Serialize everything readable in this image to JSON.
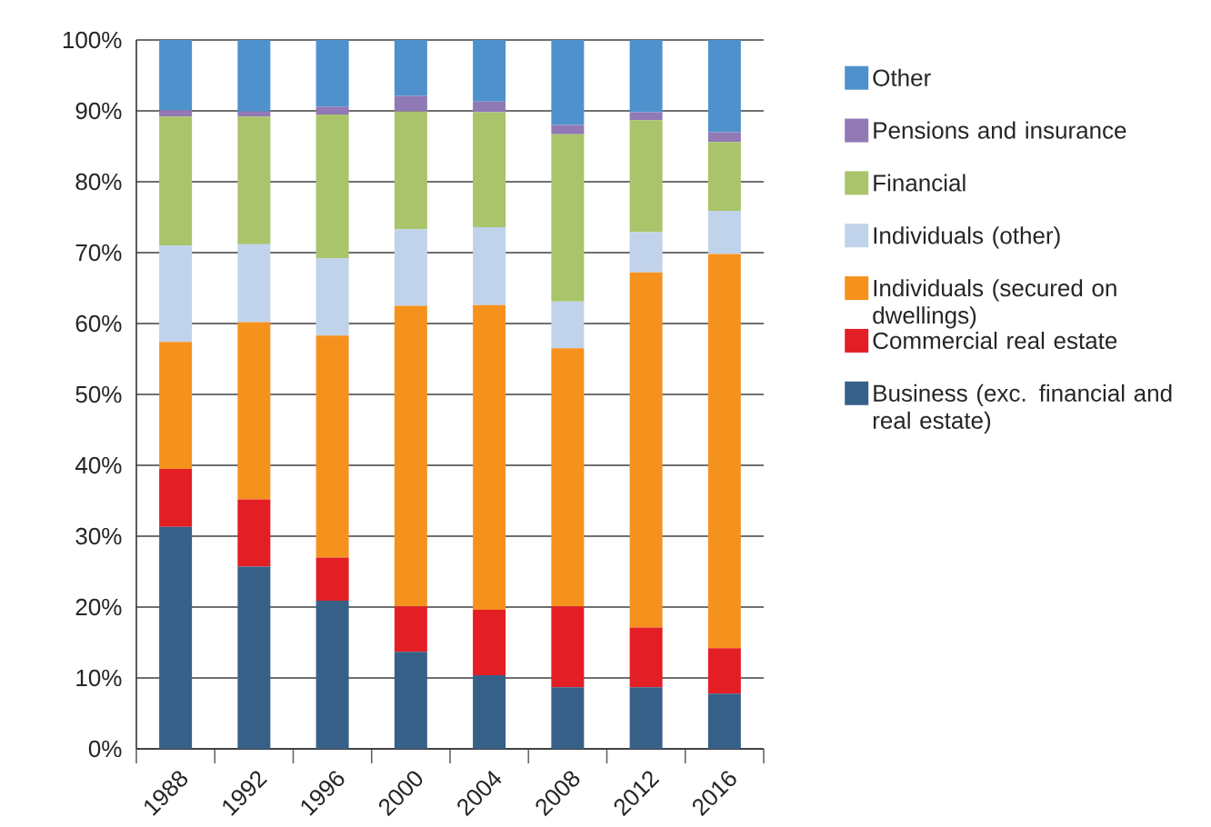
{
  "chart_data": {
    "type": "bar",
    "stacked": true,
    "categories": [
      "1988",
      "1992",
      "1996",
      "2000",
      "2004",
      "2008",
      "2012",
      "2016"
    ],
    "series": [
      {
        "name": "Business (exc. financial and real estate)",
        "color": "#376089",
        "values": [
          31.3,
          25.7,
          20.9,
          13.7,
          10.4,
          8.7,
          8.7,
          7.8
        ]
      },
      {
        "name": "Commercial real estate",
        "color": "#e31e24",
        "values": [
          8.2,
          9.5,
          6.1,
          6.4,
          9.2,
          11.4,
          8.4,
          6.4
        ]
      },
      {
        "name": "Individuals (secured on dwellings)",
        "color": "#f5921e",
        "values": [
          17.9,
          25.0,
          31.3,
          42.4,
          43.0,
          36.4,
          50.1,
          55.6
        ]
      },
      {
        "name": "Individuals (other)",
        "color": "#c0d3ea",
        "values": [
          13.6,
          11.0,
          10.9,
          10.8,
          11.0,
          6.6,
          5.7,
          6.1
        ]
      },
      {
        "name": "Financial",
        "color": "#a9c46a",
        "values": [
          18.2,
          18.0,
          20.3,
          16.6,
          16.2,
          23.6,
          15.8,
          9.7
        ]
      },
      {
        "name": "Pensions and insurance",
        "color": "#9079b5",
        "values": [
          0.9,
          0.7,
          1.1,
          2.2,
          1.5,
          1.3,
          1.1,
          1.4
        ]
      },
      {
        "name": "Other",
        "color": "#4e91cd",
        "values": [
          9.9,
          10.1,
          9.4,
          7.9,
          8.7,
          12.0,
          10.2,
          13.0
        ]
      }
    ],
    "ylim": [
      0,
      100
    ],
    "yticks": [
      {
        "value": 0,
        "label": "0%"
      },
      {
        "value": 10,
        "label": "10%"
      },
      {
        "value": 20,
        "label": "20%"
      },
      {
        "value": 30,
        "label": "30%"
      },
      {
        "value": 40,
        "label": "40%"
      },
      {
        "value": 50,
        "label": "50%"
      },
      {
        "value": 60,
        "label": "60%"
      },
      {
        "value": 70,
        "label": "70%"
      },
      {
        "value": 80,
        "label": "80%"
      },
      {
        "value": 90,
        "label": "90%"
      },
      {
        "value": 100,
        "label": "100%"
      }
    ],
    "grid": "y",
    "legend": "right"
  }
}
